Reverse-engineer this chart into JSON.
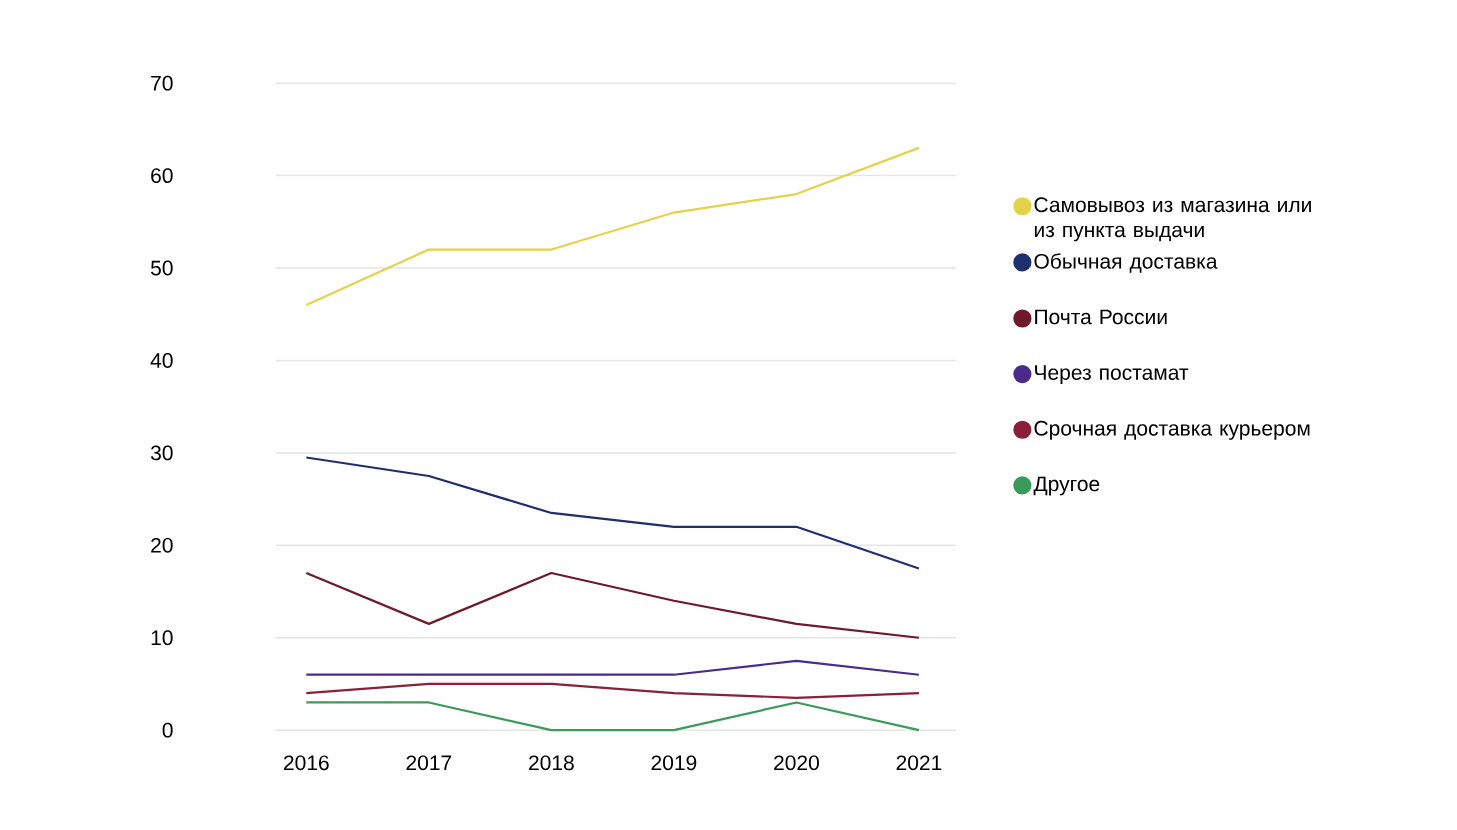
{
  "chart_data": {
    "type": "line",
    "categories": [
      "2016",
      "2017",
      "2018",
      "2019",
      "2020",
      "2021"
    ],
    "series": [
      {
        "name": "Самовывоз из магазина или из пункта выдачи",
        "color": "#e3d24a",
        "values": [
          46,
          52,
          52,
          56,
          58,
          63
        ]
      },
      {
        "name": "Обычная доставка",
        "color": "#1f2f6e",
        "values": [
          29.5,
          27.5,
          23.5,
          22,
          22,
          17.5
        ]
      },
      {
        "name": "Почта России",
        "color": "#6e1a2a",
        "values": [
          17,
          11.5,
          17,
          14,
          11.5,
          10
        ]
      },
      {
        "name": "Через постамат",
        "color": "#4a2a8a",
        "values": [
          6,
          6,
          6,
          6,
          7.5,
          6
        ]
      },
      {
        "name": "Срочная доставка курьером",
        "color": "#8a1f3a",
        "values": [
          4,
          5,
          5,
          4,
          3.5,
          4
        ]
      },
      {
        "name": "Другое",
        "color": "#3a9a5a",
        "values": [
          3,
          3,
          0,
          0,
          3,
          0
        ]
      }
    ],
    "ylim": [
      0,
      70
    ],
    "yticks": [
      0,
      10,
      20,
      30,
      40,
      50,
      60,
      70
    ],
    "grid": "y",
    "legend": "right",
    "marker": "none",
    "line_style": "solid"
  }
}
